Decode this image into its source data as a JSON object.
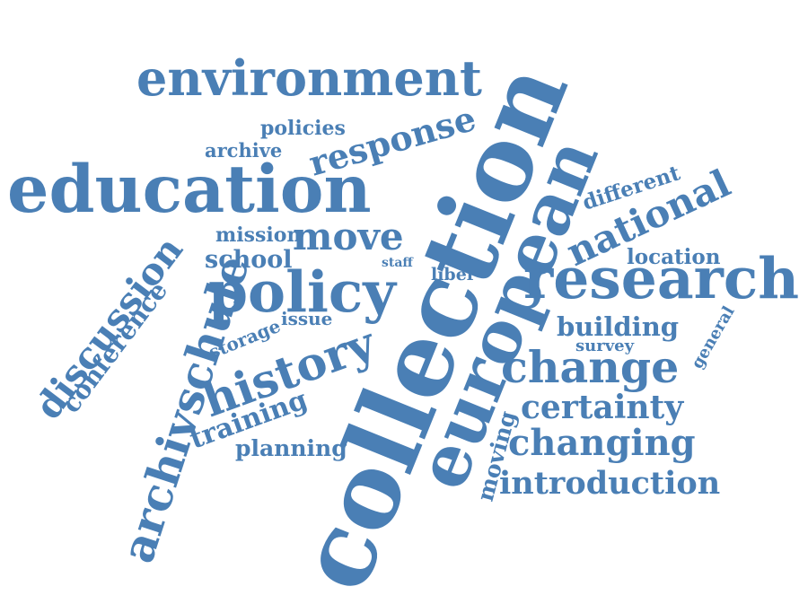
{
  "color": "#4a7fb5",
  "words": [
    "collection",
    "european",
    "education",
    "environment",
    "policy",
    "research",
    "history",
    "archivschule",
    "discussion",
    "change",
    "national",
    "response",
    "move",
    "changing",
    "certainty",
    "introduction",
    "building",
    "training",
    "conference",
    "school",
    "mission",
    "planning",
    "different",
    "location",
    "moving",
    "policies",
    "archive",
    "storage",
    "issue",
    "staff",
    "liber",
    "survey",
    "general"
  ]
}
